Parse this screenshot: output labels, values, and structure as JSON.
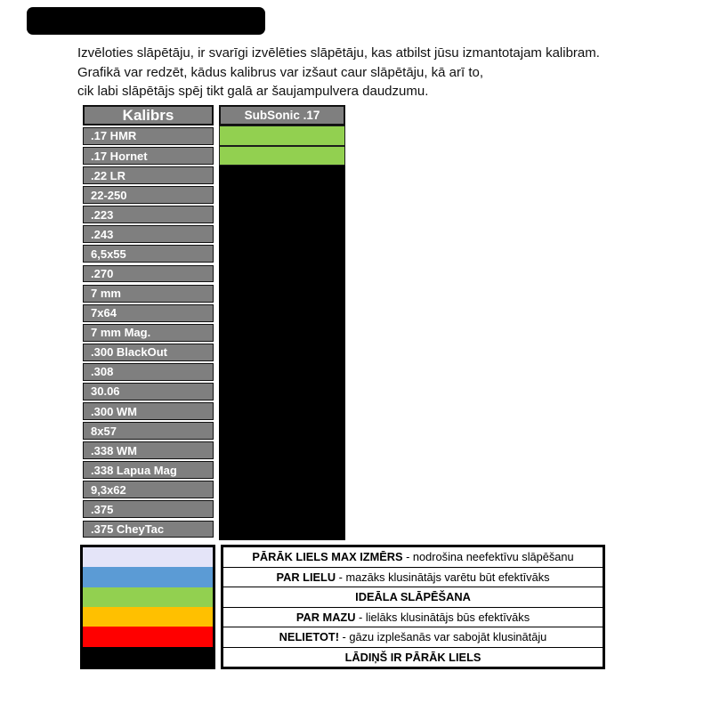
{
  "intro": {
    "lines": [
      "Izvēloties slāpētāju, ir svarīgi izvēlēties slāpētāju, kas atbilst jūsu izmantotajam kalibram.",
      "Grafikā var redzēt, kādus kalibrus var izšaut caur slāpētāju, kā arī to,",
      "cik labi slāpētājs spēj tikt galā ar šaujampulvera daudzumu."
    ]
  },
  "table": {
    "caliber_header": "Kalibrs",
    "suppressor_header": "SubSonic .17",
    "rows": [
      {
        "label": ".17 HMR",
        "status": "ideal"
      },
      {
        "label": ".17 Hornet",
        "status": "ideal"
      },
      {
        "label": ".22 LR",
        "status": "charge-too-big"
      },
      {
        "label": "22-250",
        "status": "charge-too-big"
      },
      {
        "label": ".223",
        "status": "charge-too-big"
      },
      {
        "label": ".243",
        "status": "charge-too-big"
      },
      {
        "label": "6,5x55",
        "status": "charge-too-big"
      },
      {
        "label": ".270",
        "status": "charge-too-big"
      },
      {
        "label": "7 mm",
        "status": "charge-too-big"
      },
      {
        "label": "7x64",
        "status": "charge-too-big"
      },
      {
        "label": "7 mm Mag.",
        "status": "charge-too-big"
      },
      {
        "label": ".300 BlackOut",
        "status": "charge-too-big"
      },
      {
        "label": ".308",
        "status": "charge-too-big"
      },
      {
        "label": "30.06",
        "status": "charge-too-big"
      },
      {
        "label": ".300 WM",
        "status": "charge-too-big"
      },
      {
        "label": "8x57",
        "status": "charge-too-big"
      },
      {
        "label": ".338 WM",
        "status": "charge-too-big"
      },
      {
        "label": ".338 Lapua Mag",
        "status": "charge-too-big"
      },
      {
        "label": "9,3x62",
        "status": "charge-too-big"
      },
      {
        "label": ".375",
        "status": "charge-too-big"
      },
      {
        "label": ".375 CheyTac",
        "status": "charge-too-big"
      }
    ]
  },
  "legend": {
    "items": [
      {
        "key": "max-size-too-big",
        "color": "#e4e4f8",
        "bold": "PĀRĀK LIELS MAX IZMĒRS",
        "rest": " - nodrošina neefektīvu slāpēšanu"
      },
      {
        "key": "too-big",
        "color": "#5b9bd5",
        "bold": "PAR LIELU",
        "rest": " - mazāks klusinātājs varētu būt efektīvāks"
      },
      {
        "key": "ideal",
        "color": "#92d050",
        "bold": "IDEĀLA SLĀPĒŠANA",
        "rest": ""
      },
      {
        "key": "too-small",
        "color": "#ffc000",
        "bold": "PAR MAZU",
        "rest": " - lielāks klusinātājs būs efektīvāks"
      },
      {
        "key": "do-not-use",
        "color": "#ff0000",
        "bold": "NELIETOT!",
        "rest": " - gāzu izplešanās var sabojāt klusinātāju"
      },
      {
        "key": "charge-too-big",
        "color": "#000000",
        "bold": "LĀDIŅŠ IR PĀRĀK LIELS",
        "rest": ""
      }
    ]
  },
  "colors": {
    "cell_gray": "#7f7f7f",
    "ideal_green": "#92d050",
    "overload_black": "#000000"
  },
  "chart_data": {
    "type": "table",
    "title": "",
    "columns": [
      "Kalibrs",
      "SubSonic .17"
    ],
    "rows": [
      [
        ".17 HMR",
        "ideal"
      ],
      [
        ".17 Hornet",
        "ideal"
      ],
      [
        ".22 LR",
        "charge-too-big"
      ],
      [
        "22-250",
        "charge-too-big"
      ],
      [
        ".223",
        "charge-too-big"
      ],
      [
        ".243",
        "charge-too-big"
      ],
      [
        "6,5x55",
        "charge-too-big"
      ],
      [
        ".270",
        "charge-too-big"
      ],
      [
        "7 mm",
        "charge-too-big"
      ],
      [
        "7x64",
        "charge-too-big"
      ],
      [
        "7 mm Mag.",
        "charge-too-big"
      ],
      [
        ".300 BlackOut",
        "charge-too-big"
      ],
      [
        ".308",
        "charge-too-big"
      ],
      [
        "30.06",
        "charge-too-big"
      ],
      [
        ".300 WM",
        "charge-too-big"
      ],
      [
        "8x57",
        "charge-too-big"
      ],
      [
        ".338 WM",
        "charge-too-big"
      ],
      [
        ".338 Lapua Mag",
        "charge-too-big"
      ],
      [
        "9,3x62",
        "charge-too-big"
      ],
      [
        ".375",
        "charge-too-big"
      ],
      [
        ".375 CheyTac",
        "charge-too-big"
      ]
    ],
    "legend_position": "bottom",
    "status_colors": {
      "ideal": "#92d050",
      "charge-too-big": "#000000"
    }
  }
}
